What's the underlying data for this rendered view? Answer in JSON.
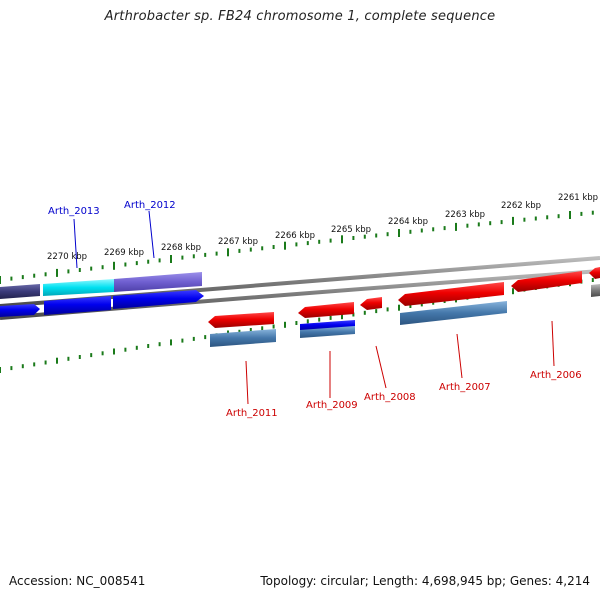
{
  "title": "Arthrobacter sp. FB24 chromosome 1, complete sequence",
  "accession": "Accession: NC_008541",
  "summary": "Topology: circular; Length: 4,698,945 bp; Genes: 4,214",
  "colors": {
    "forward_label": "#0000cc",
    "reverse_label": "#cc0000",
    "ticks": "#1a7a1a",
    "backbone": "#777777",
    "cds_forward": "#0000ee",
    "cds_reverse": "#ee0000",
    "gene_forward_dark": "#3a3a7a",
    "gene_forward_cyan": "#00e0f0",
    "gene_forward_violet": "#6f5fd0",
    "gene_reverse_steel": "#4477aa"
  },
  "kbp_labels": [
    "2270 kbp",
    "2269 kbp",
    "2268 kbp",
    "2267 kbp",
    "2266 kbp",
    "2265 kbp",
    "2264 kbp",
    "2263 kbp",
    "2262 kbp",
    "2261 kbp"
  ],
  "forward_gene_labels": [
    "Arth_2013",
    "Arth_2012"
  ],
  "reverse_gene_labels": [
    "Arth_2011",
    "Arth_2009",
    "Arth_2008",
    "Arth_2007",
    "Arth_2006"
  ]
}
